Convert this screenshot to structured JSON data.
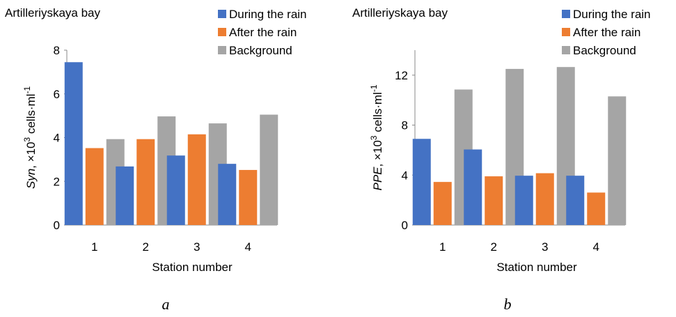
{
  "panels": [
    {
      "caption": "a"
    },
    {
      "caption": "b"
    }
  ],
  "chart_data": [
    {
      "type": "bar",
      "title": "Artilleriyskaya bay",
      "xlabel": "Station number",
      "ylabel": {
        "italic": "Syn",
        "rest": ", ×10",
        "sup1": "3",
        "mid": " cells·ml",
        "sup2": "-1"
      },
      "categories": [
        "1",
        "2",
        "3",
        "4"
      ],
      "ylim": [
        0,
        8
      ],
      "yticks": [
        0,
        2,
        4,
        6,
        8
      ],
      "legend_position": "top-right",
      "series": [
        {
          "name": "During the rain",
          "color": "#4472C4",
          "values": [
            7.45,
            2.68,
            3.18,
            2.8
          ]
        },
        {
          "name": "After the rain",
          "color": "#ED7D31",
          "values": [
            3.52,
            3.93,
            4.15,
            2.52
          ]
        },
        {
          "name": "Background",
          "color": "#A5A5A5",
          "values": [
            3.93,
            4.97,
            4.65,
            5.05
          ]
        }
      ]
    },
    {
      "type": "bar",
      "title": "Artilleriyskaya bay",
      "xlabel": "Station number",
      "ylabel": {
        "italic": "PPE",
        "rest": ", ×10",
        "sup1": "3",
        "mid": " cells·ml",
        "sup2": "-1"
      },
      "categories": [
        "1",
        "2",
        "3",
        "4"
      ],
      "ylim": [
        0,
        14
      ],
      "yticks": [
        0,
        4,
        8,
        12
      ],
      "legend_position": "top-right",
      "series": [
        {
          "name": "During the rain",
          "color": "#4472C4",
          "values": [
            6.9,
            6.05,
            3.95,
            3.95
          ]
        },
        {
          "name": "After the rain",
          "color": "#ED7D31",
          "values": [
            3.45,
            3.9,
            4.15,
            2.6
          ]
        },
        {
          "name": "Background",
          "color": "#A5A5A5",
          "values": [
            10.85,
            12.5,
            12.65,
            10.3
          ]
        }
      ]
    }
  ]
}
